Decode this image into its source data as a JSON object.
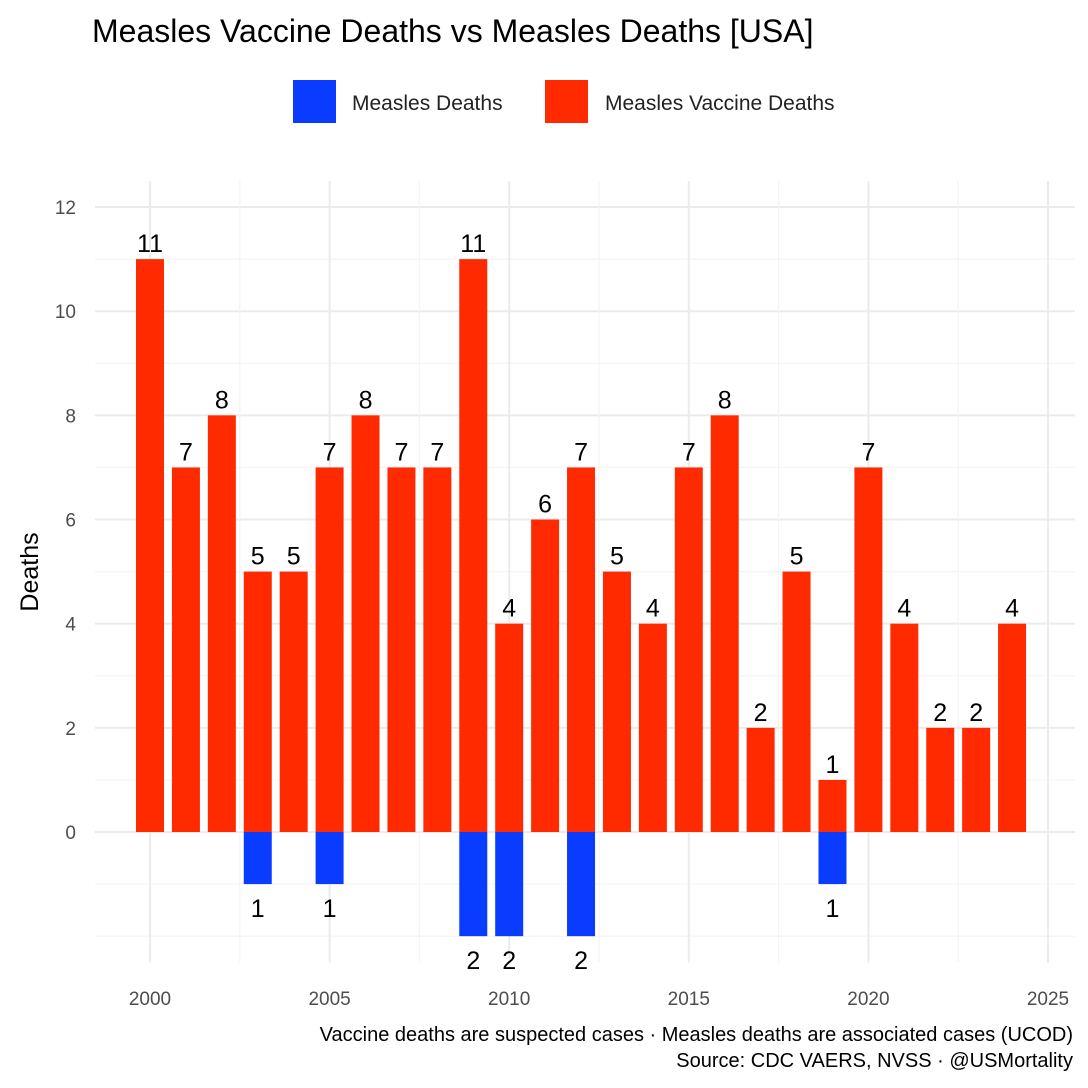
{
  "chart_data": {
    "type": "bar",
    "title": "Measles Vaccine Deaths vs Measles Deaths [USA]",
    "xlabel": "",
    "ylabel": "Deaths",
    "ylim": [
      -2.5,
      12.5
    ],
    "xlim": [
      1998.5,
      2025.5
    ],
    "x_ticks": [
      "2000",
      "2005",
      "2010",
      "2015",
      "2020",
      "2025"
    ],
    "y_ticks": [
      "0",
      "2",
      "4",
      "6",
      "8",
      "10",
      "12"
    ],
    "grid": true,
    "legend_position": "top",
    "legend": [
      "Measles Deaths",
      "Measles Vaccine Deaths"
    ],
    "series": [
      {
        "name": "Measles Vaccine Deaths",
        "color": "#ff2a00",
        "direction": "up",
        "x": [
          2000,
          2001,
          2002,
          2003,
          2004,
          2005,
          2006,
          2007,
          2008,
          2009,
          2010,
          2011,
          2012,
          2013,
          2014,
          2015,
          2016,
          2017,
          2018,
          2019,
          2020,
          2021,
          2022,
          2023,
          2024
        ],
        "values": [
          11,
          7,
          8,
          5,
          5,
          7,
          8,
          7,
          7,
          11,
          4,
          6,
          7,
          5,
          4,
          7,
          8,
          2,
          5,
          1,
          7,
          4,
          2,
          2,
          4
        ]
      },
      {
        "name": "Measles Deaths",
        "color": "#0a3cff",
        "direction": "down",
        "x": [
          2003,
          2005,
          2009,
          2010,
          2012,
          2019
        ],
        "values": [
          1,
          1,
          2,
          2,
          2,
          1
        ]
      }
    ],
    "caption": [
      "Vaccine deaths are suspected cases · Measles deaths are associated cases (UCOD)",
      "Source: CDC VAERS, NVSS · @USMortality"
    ]
  }
}
